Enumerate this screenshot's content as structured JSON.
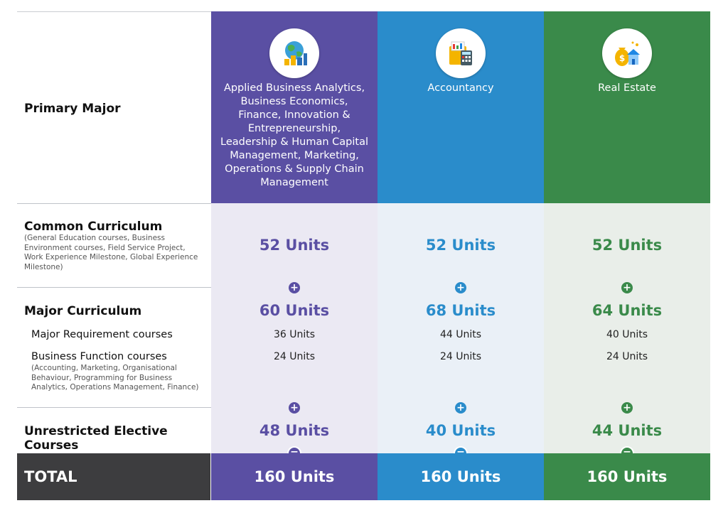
{
  "labels": {
    "primary_major": "Primary Major",
    "common_curriculum": "Common Curriculum",
    "common_curriculum_note": "(General Education courses, Business Environment courses, Field Service Project, Work Experience Milestone, Global Experience Milestone)",
    "major_curriculum": "Major Curriculum",
    "major_requirement": "Major Requirement courses",
    "business_function": "Business Function courses",
    "business_function_note": "(Accounting, Marketing, Organisational Behaviour, Programming for Business Analytics, Operations Management, Finance)",
    "unrestricted_elective": "Unrestricted Elective Courses",
    "total": "TOTAL"
  },
  "operators": {
    "plus": "+",
    "equals": "="
  },
  "columns": [
    {
      "icon": "globe-analytics-icon",
      "title": "Applied Business Analytics, Business Economics, Finance, Innovation & Entrepreneurship, Leadership & Human Capital Management, Marketing, Operations & Supply Chain Management",
      "common": "52 Units",
      "major": "60 Units",
      "major_requirement": "36 Units",
      "business_function": "24 Units",
      "elective": "48 Units",
      "total": "160 Units",
      "color": "#5a4fa3",
      "tint": "#ebe9f3"
    },
    {
      "icon": "calculator-folder-icon",
      "title": "Accountancy",
      "common": "52 Units",
      "major": "68 Units",
      "major_requirement": "44 Units",
      "business_function": "24 Units",
      "elective": "40 Units",
      "total": "160 Units",
      "color": "#2a8ccb",
      "tint": "#eaf0f7"
    },
    {
      "icon": "money-house-icon",
      "title": "Real Estate",
      "common": "52 Units",
      "major": "64 Units",
      "major_requirement": "40 Units",
      "business_function": "24 Units",
      "elective": "44 Units",
      "total": "160 Units",
      "color": "#3a8a4a",
      "tint": "#e9eee9"
    }
  ],
  "colors": {
    "total_label_bg": "#3d3d3f",
    "separator": "#bfc3c9"
  }
}
